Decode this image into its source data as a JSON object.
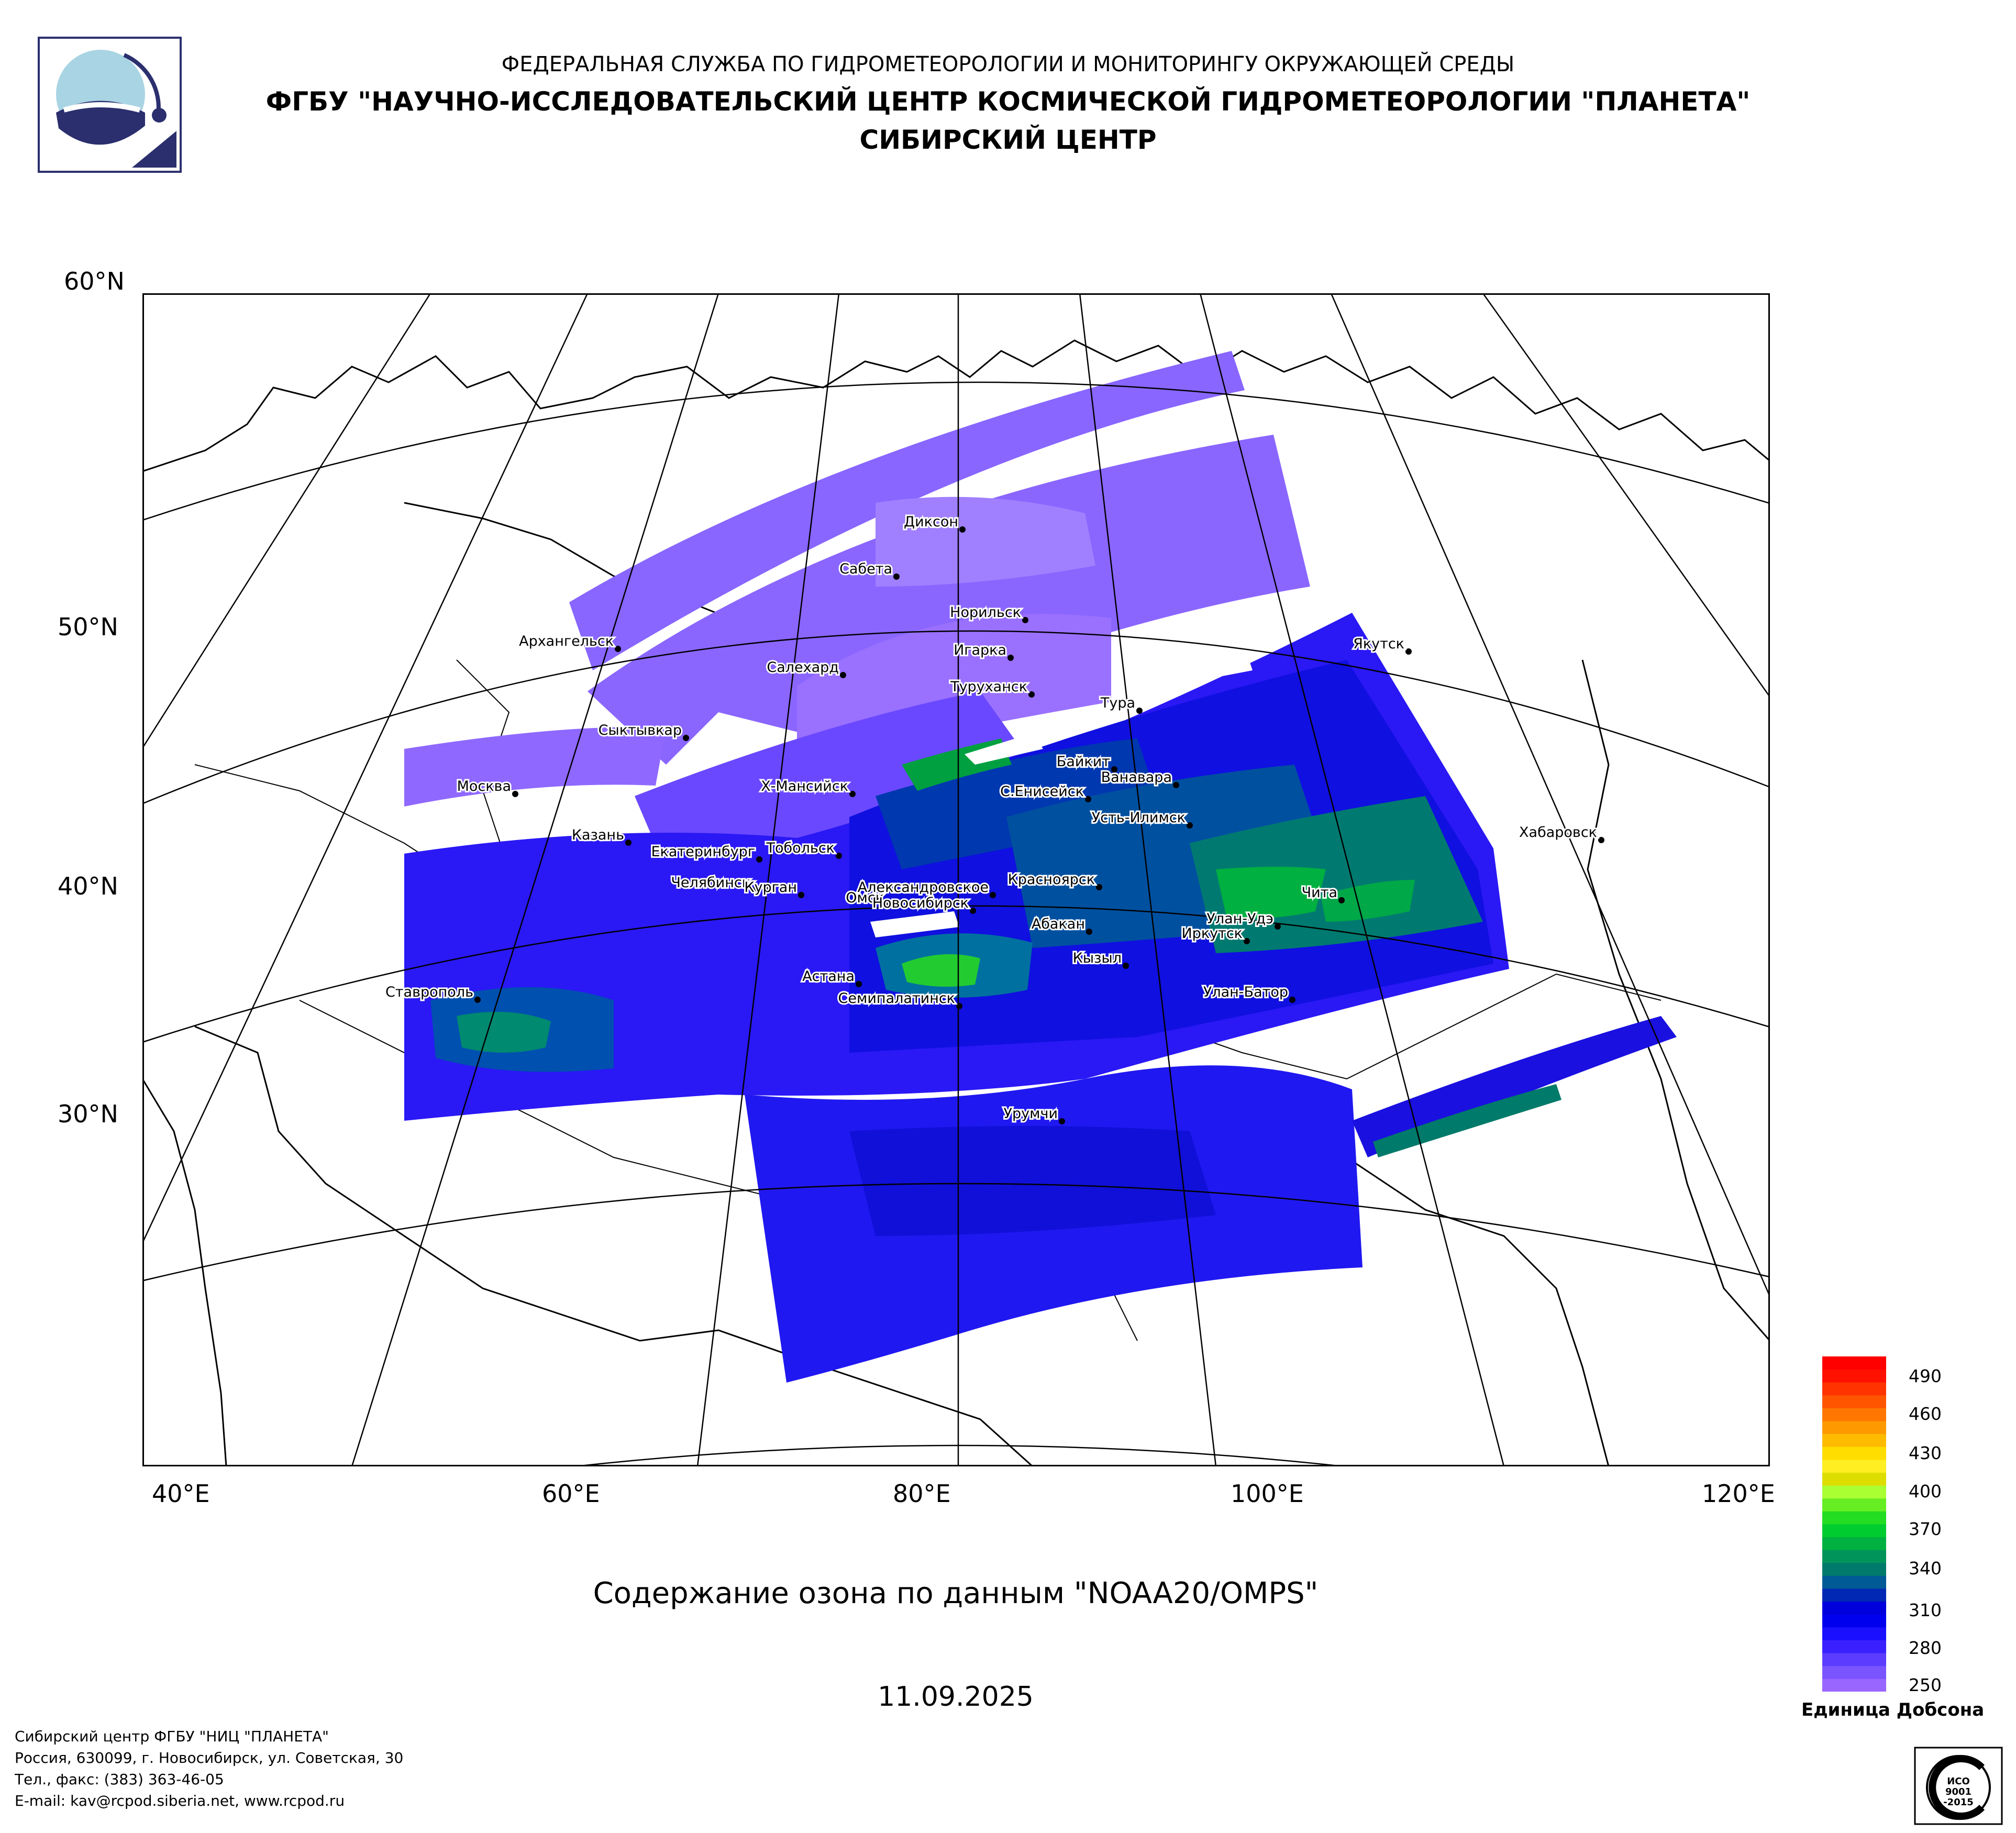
{
  "header": {
    "line1": "ФЕДЕРАЛЬНАЯ СЛУЖБА ПО ГИДРОМЕТЕОРОЛОГИИ И МОНИТОРИНГУ ОКРУЖАЮЩЕЙ СРЕДЫ",
    "line2": "ФГБУ \"НАУЧНО-ИССЛЕДОВАТЕЛЬСКИЙ ЦЕНТР КОСМИЧЕСКОЙ ГИДРОМЕТЕОРОЛОГИИ \"ПЛАНЕТА\"",
    "line3": "СИБИРСКИЙ ЦЕНТР"
  },
  "map": {
    "lat_labels": [
      "60°N",
      "50°N",
      "40°N",
      "30°N"
    ],
    "lon_labels": [
      "40°E",
      "60°E",
      "80°E",
      "100°E",
      "120°E"
    ],
    "cities": [
      "Диксон",
      "Сабета",
      "Норильск",
      "Архангельск",
      "Салехард",
      "Игарка",
      "Туруханск",
      "Якутск",
      "Тура",
      "Сыктывкар",
      "Байкит",
      "Ванавара",
      "Москва",
      "Х-Мансийск",
      "С.Енисейск",
      "Усть-Илимск",
      "Казань",
      "Тобольск",
      "Екатеринбург",
      "Хабаровск",
      "Челябинск",
      "Александровское",
      "Красноярск",
      "Курган",
      "Омск",
      "Чита",
      "Улан-Удэ",
      "Новосибирск",
      "Абакан",
      "Иркутск",
      "Кызыл",
      "Астана",
      "Ставрополь",
      "Семипалатинск",
      "Улан-Батор",
      "Урумчи"
    ]
  },
  "title": "Содержание озона по данным \"NOAA20/OMPS\"",
  "date": "11.09.2025",
  "colorbar": {
    "unit": "Единица Добсона",
    "ticks": [
      "490",
      "460",
      "430",
      "400",
      "370",
      "340",
      "310",
      "280",
      "250"
    ],
    "colors": [
      "#9966ff",
      "#7a55ff",
      "#5c3cff",
      "#3a20ff",
      "#1a10ff",
      "#0000ee",
      "#0000dd",
      "#0028b4",
      "#005a96",
      "#007a6a",
      "#00945a",
      "#00b040",
      "#00cc30",
      "#22dd22",
      "#66ee22",
      "#aaff33",
      "#dddd00",
      "#ffee22",
      "#ffdd00",
      "#ffbb00",
      "#ff9900",
      "#ff7700",
      "#ff5500",
      "#ff3300",
      "#ff1100",
      "#ff0000"
    ]
  },
  "footer": {
    "line1": "Сибирский центр ФГБУ \"НИЦ \"ПЛАНЕТА\"",
    "line2": "Россия, 630099, г. Новосибирск, ул. Советская, 30",
    "line3": "Тел., факс: (383) 363-46-05",
    "line4": "E-mail: kav@rcpod.siberia.net, www.rcpod.ru"
  },
  "iso_badge": "ИСО 9001 -2015"
}
